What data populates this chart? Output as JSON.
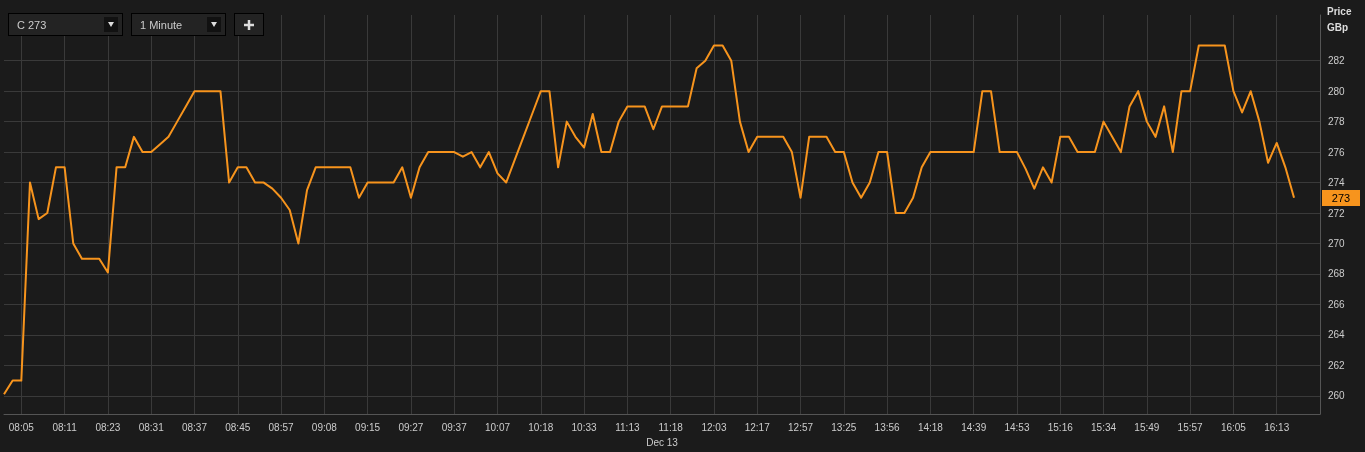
{
  "chart_data": {
    "type": "line",
    "xlabel": "Dec 13",
    "ylabel": "Price GBp",
    "annotations": [
      "C 273",
      "1 Minute",
      "273"
    ],
    "categories": [
      null,
      null,
      "08:05",
      null,
      null,
      null,
      null,
      "08:11",
      null,
      null,
      null,
      null,
      "08:23",
      null,
      null,
      null,
      null,
      "08:31",
      null,
      null,
      null,
      null,
      "08:37",
      null,
      null,
      null,
      null,
      "08:45",
      null,
      null,
      null,
      null,
      "08:57",
      null,
      null,
      null,
      null,
      "09:08",
      null,
      null,
      null,
      null,
      "09:15",
      null,
      null,
      null,
      null,
      "09:27",
      null,
      null,
      null,
      null,
      "09:37",
      null,
      null,
      null,
      null,
      "10:07",
      null,
      null,
      null,
      null,
      "10:18",
      null,
      null,
      null,
      null,
      "10:33",
      null,
      null,
      null,
      null,
      "11:13",
      null,
      null,
      null,
      null,
      "11:18",
      null,
      null,
      null,
      null,
      "12:03",
      null,
      null,
      null,
      null,
      "12:17",
      null,
      null,
      null,
      null,
      "12:57",
      null,
      null,
      null,
      null,
      "13:25",
      null,
      null,
      null,
      null,
      "13:56",
      null,
      null,
      null,
      null,
      "14:18",
      null,
      null,
      null,
      null,
      "14:39",
      null,
      null,
      null,
      null,
      "14:53",
      null,
      null,
      null,
      null,
      "15:16",
      null,
      null,
      null,
      null,
      "15:34",
      null,
      null,
      null,
      null,
      "15:49",
      null,
      null,
      null,
      null,
      "15:57",
      null,
      null,
      null,
      null,
      "16:05",
      null,
      null,
      null,
      null,
      "16:13",
      null,
      null
    ],
    "series": [
      {
        "color": "#f7941d",
        "values": [
          260.1,
          261,
          261,
          274,
          271.6,
          272,
          275,
          275,
          270,
          269,
          269,
          269,
          268.1,
          275,
          275,
          277,
          276,
          276,
          276.5,
          277,
          278,
          279,
          280,
          280,
          280,
          280,
          274,
          275,
          275,
          274,
          274,
          273.6,
          273,
          272.2,
          270,
          273.5,
          275,
          275,
          275,
          275,
          275,
          273,
          274,
          274,
          274,
          274,
          275,
          273,
          275,
          276,
          276,
          276,
          276,
          275.7,
          276,
          275,
          276,
          274.6,
          274,
          275.5,
          277,
          278.5,
          280,
          280,
          275,
          278,
          277,
          276.3,
          278.5,
          276,
          276,
          278,
          279,
          279,
          279,
          277.5,
          279,
          279,
          279,
          279,
          281.5,
          282,
          283,
          283,
          282,
          278,
          276,
          277,
          277,
          277,
          277,
          276,
          273,
          277,
          277,
          277,
          276,
          276,
          274,
          273,
          274,
          276,
          276,
          272,
          272,
          273,
          275,
          276,
          276,
          276,
          276,
          276,
          276,
          280,
          280,
          276,
          276,
          276,
          274.9,
          273.6,
          275,
          274,
          277,
          277,
          276,
          276,
          276,
          278,
          277,
          276,
          279,
          280,
          278,
          277,
          279,
          276,
          280,
          280,
          283,
          283,
          283,
          283,
          280,
          278.6,
          280,
          278,
          275.3,
          276.6,
          275,
          273
        ]
      }
    ],
    "ylim": [
      258.8,
      285
    ],
    "yticks": [
      260,
      262,
      264,
      266,
      268,
      270,
      272,
      274,
      276,
      278,
      280,
      282
    ],
    "grid": true,
    "marker": "none",
    "line_style": "solid"
  }
}
